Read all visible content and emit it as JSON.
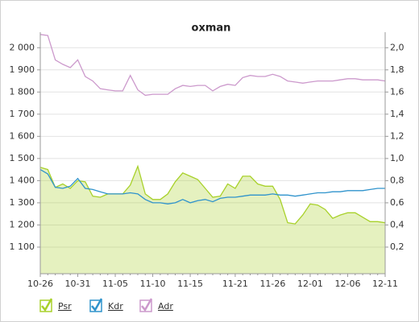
{
  "chart_data": {
    "type": "line",
    "title": "oxman",
    "categories": [
      "10-26",
      null,
      null,
      null,
      null,
      "10-31",
      null,
      null,
      null,
      null,
      "11-05",
      null,
      null,
      null,
      null,
      "11-10",
      null,
      null,
      null,
      null,
      "11-15",
      null,
      null,
      null,
      null,
      null,
      "11-21",
      null,
      null,
      null,
      null,
      "11-26",
      null,
      null,
      null,
      null,
      "12-01",
      null,
      null,
      null,
      null,
      "12-06",
      null,
      null,
      null,
      null,
      "12-11"
    ],
    "ylim": [
      980,
      2070
    ],
    "yticks": [
      {
        "value": 1100,
        "label": "1 100"
      },
      {
        "value": 1200,
        "label": "1 200"
      },
      {
        "value": 1300,
        "label": "1 300"
      },
      {
        "value": 1400,
        "label": "1 400"
      },
      {
        "value": 1500,
        "label": "1 500"
      },
      {
        "value": 1600,
        "label": "1 600"
      },
      {
        "value": 1700,
        "label": "1 700"
      },
      {
        "value": 1800,
        "label": "1 800"
      },
      {
        "value": 1900,
        "label": "1 900"
      },
      {
        "value": 2000,
        "label": "2 000"
      }
    ],
    "y2lim": [
      -0.04,
      2.14
    ],
    "y2ticks": [
      {
        "value": 0.2,
        "label": "0,2"
      },
      {
        "value": 0.4,
        "label": "0,4"
      },
      {
        "value": 0.6,
        "label": "0,6"
      },
      {
        "value": 0.8,
        "label": "0,8"
      },
      {
        "value": 1.0,
        "label": "1,0"
      },
      {
        "value": 1.2,
        "label": "1,2"
      },
      {
        "value": 1.4,
        "label": "1,4"
      },
      {
        "value": 1.6,
        "label": "1,6"
      },
      {
        "value": 1.8,
        "label": "1,8"
      },
      {
        "value": 2.0,
        "label": "2,0"
      }
    ],
    "grid": true,
    "series": [
      {
        "name": "Psr",
        "color": "#a8d12a",
        "area": true,
        "values": [
          1460,
          1450,
          1370,
          1385,
          1365,
          1400,
          1395,
          1330,
          1325,
          1340,
          1340,
          1340,
          1380,
          1465,
          1340,
          1315,
          1315,
          1340,
          1395,
          1435,
          1420,
          1405,
          1365,
          1325,
          1330,
          1385,
          1365,
          1420,
          1420,
          1385,
          1375,
          1375,
          1315,
          1210,
          1205,
          1245,
          1295,
          1290,
          1270,
          1230,
          1245,
          1255,
          1255,
          1235,
          1215,
          1215,
          1210
        ]
      },
      {
        "name": "Kdr",
        "color": "#2f93cc",
        "area": false,
        "values": [
          1450,
          1430,
          1370,
          1365,
          1375,
          1410,
          1365,
          1360,
          1350,
          1340,
          1340,
          1340,
          1345,
          1340,
          1315,
          1300,
          1300,
          1295,
          1300,
          1315,
          1300,
          1310,
          1315,
          1305,
          1320,
          1325,
          1325,
          1330,
          1335,
          1335,
          1335,
          1340,
          1335,
          1335,
          1330,
          1335,
          1340,
          1345,
          1345,
          1350,
          1350,
          1355,
          1355,
          1355,
          1360,
          1365,
          1365
        ]
      },
      {
        "name": "Adr",
        "color": "#cc99cc",
        "area": false,
        "values": [
          2060,
          2055,
          1945,
          1925,
          1910,
          1945,
          1870,
          1850,
          1815,
          1810,
          1805,
          1805,
          1875,
          1810,
          1785,
          1790,
          1790,
          1790,
          1815,
          1830,
          1825,
          1830,
          1830,
          1805,
          1825,
          1835,
          1830,
          1865,
          1875,
          1870,
          1870,
          1880,
          1870,
          1850,
          1845,
          1840,
          1845,
          1850,
          1850,
          1850,
          1855,
          1860,
          1860,
          1855,
          1855,
          1855,
          1850
        ]
      }
    ]
  }
}
